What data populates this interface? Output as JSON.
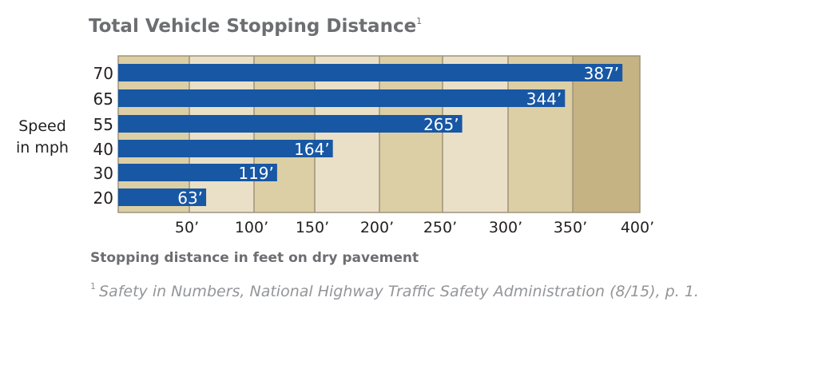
{
  "chart_data": {
    "type": "bar",
    "orientation": "horizontal",
    "title": "Total Vehicle Stopping Distance",
    "title_footnote_marker": "1",
    "ylabel": "Speed in mph",
    "xlabel": "Stopping distance in feet on dry pavement",
    "categories": [
      "70",
      "65",
      "55",
      "40",
      "30",
      "20"
    ],
    "values": [
      387,
      344,
      265,
      164,
      119,
      63
    ],
    "data_labels": [
      "387’",
      "344’",
      "265’",
      "164’",
      "119’",
      "63’"
    ],
    "x_ticks": [
      50,
      100,
      150,
      200,
      250,
      300,
      350,
      400
    ],
    "x_tick_labels": [
      "50’",
      "100’",
      "150’",
      "200’",
      "250’",
      "300’",
      "350’",
      "400’"
    ],
    "xlim": [
      0,
      400
    ],
    "grid": true,
    "colors": {
      "bar": "#1857a4",
      "band_dark": "#dccfa5",
      "band_light": "#e9e0c7",
      "band_last": "#c5b384",
      "gridline": "#9e927a"
    },
    "footnote_marker": "1",
    "footnote": "Safety in Numbers, National Highway Traffic Safety Administration (8/15), p. 1."
  }
}
